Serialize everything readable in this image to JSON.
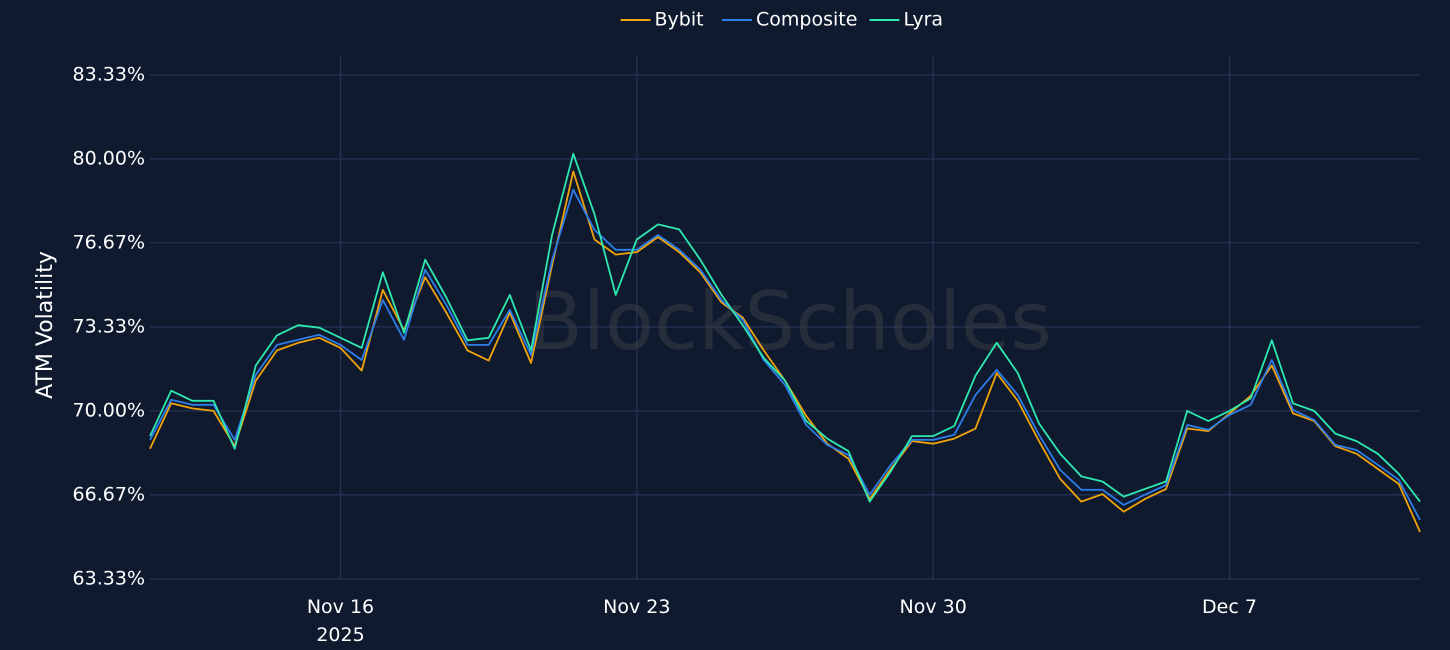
{
  "chart_data": {
    "type": "line",
    "y_axis_label": "ATM Volatility",
    "watermark": "BlockScholes",
    "legend_position": "top",
    "grid": true,
    "xlim": [
      "2025-11-11T12:00",
      "2025-12-11T12:00"
    ],
    "xticks": [
      {
        "value": "2025-11-16T00:00",
        "label": "Nov 16",
        "sublabel": "2025"
      },
      {
        "value": "2025-11-23T00:00",
        "label": "Nov 23"
      },
      {
        "value": "2025-11-30T00:00",
        "label": "Nov 30"
      },
      {
        "value": "2025-12-07T00:00",
        "label": "Dec 7"
      }
    ],
    "ylim": [
      63.33,
      84.12
    ],
    "yticks": [
      {
        "value": 63.33,
        "label": "63.33%"
      },
      {
        "value": 66.67,
        "label": "66.67%"
      },
      {
        "value": 70.0,
        "label": "70.00%"
      },
      {
        "value": 73.33,
        "label": "73.33%"
      },
      {
        "value": 76.67,
        "label": "76.67%"
      },
      {
        "value": 80.0,
        "label": "80.00%"
      },
      {
        "value": 83.33,
        "label": "83.33%"
      }
    ],
    "x": [
      "2025-11-11T12:00",
      "2025-11-12T00:00",
      "2025-11-12T12:00",
      "2025-11-13T00:00",
      "2025-11-13T12:00",
      "2025-11-14T00:00",
      "2025-11-14T12:00",
      "2025-11-15T00:00",
      "2025-11-15T12:00",
      "2025-11-16T00:00",
      "2025-11-16T12:00",
      "2025-11-17T00:00",
      "2025-11-17T12:00",
      "2025-11-18T00:00",
      "2025-11-18T12:00",
      "2025-11-19T00:00",
      "2025-11-19T12:00",
      "2025-11-20T00:00",
      "2025-11-20T12:00",
      "2025-11-21T00:00",
      "2025-11-21T12:00",
      "2025-11-22T00:00",
      "2025-11-22T12:00",
      "2025-11-23T00:00",
      "2025-11-23T12:00",
      "2025-11-24T00:00",
      "2025-11-24T12:00",
      "2025-11-25T00:00",
      "2025-11-25T12:00",
      "2025-11-26T00:00",
      "2025-11-26T12:00",
      "2025-11-27T00:00",
      "2025-11-27T12:00",
      "2025-11-28T00:00",
      "2025-11-28T12:00",
      "2025-11-29T00:00",
      "2025-11-29T12:00",
      "2025-11-30T00:00",
      "2025-11-30T12:00",
      "2025-12-01T00:00",
      "2025-12-01T12:00",
      "2025-12-02T00:00",
      "2025-12-02T12:00",
      "2025-12-03T00:00",
      "2025-12-03T12:00",
      "2025-12-04T00:00",
      "2025-12-04T12:00",
      "2025-12-05T00:00",
      "2025-12-05T12:00",
      "2025-12-06T00:00",
      "2025-12-06T12:00",
      "2025-12-07T00:00",
      "2025-12-07T12:00",
      "2025-12-08T00:00",
      "2025-12-08T12:00",
      "2025-12-09T00:00",
      "2025-12-09T12:00",
      "2025-12-10T00:00",
      "2025-12-10T12:00",
      "2025-12-11T00:00",
      "2025-12-11T12:00"
    ],
    "series": [
      {
        "name": "Bybit",
        "color": "#f0a30a",
        "values": [
          68.5,
          70.3,
          70.1,
          70.0,
          68.6,
          71.2,
          72.4,
          72.7,
          72.9,
          72.5,
          71.6,
          74.8,
          73.2,
          75.3,
          73.9,
          72.4,
          72.0,
          73.9,
          71.9,
          75.8,
          79.5,
          76.8,
          76.2,
          76.3,
          76.9,
          76.3,
          75.5,
          74.3,
          73.7,
          72.4,
          71.2,
          69.8,
          68.7,
          68.1,
          66.5,
          67.7,
          68.8,
          68.7,
          68.9,
          69.3,
          71.5,
          70.4,
          68.8,
          67.3,
          66.4,
          66.7,
          66.0,
          66.5,
          66.9,
          69.3,
          69.2,
          69.9,
          70.6,
          71.8,
          69.9,
          69.6,
          68.6,
          68.3,
          67.7,
          67.1,
          65.2
        ]
      },
      {
        "name": "Composite",
        "color": "#2e7de8",
        "values": [
          68.85,
          70.44,
          70.24,
          70.24,
          68.85,
          71.43,
          72.62,
          72.82,
          73.02,
          72.62,
          72.02,
          74.4,
          72.82,
          75.6,
          74.21,
          72.62,
          72.62,
          74.01,
          72.22,
          75.99,
          78.77,
          77.18,
          76.39,
          76.39,
          76.98,
          76.39,
          75.6,
          74.4,
          73.61,
          72.02,
          71.03,
          69.44,
          68.65,
          68.25,
          66.67,
          67.86,
          68.85,
          68.85,
          69.05,
          70.63,
          71.63,
          70.63,
          69.05,
          67.66,
          66.87,
          66.87,
          66.27,
          66.67,
          67.06,
          69.44,
          69.25,
          69.84,
          70.24,
          72.02,
          70.04,
          69.64,
          68.65,
          68.45,
          67.86,
          67.26,
          65.67
        ]
      },
      {
        "name": "Lyra",
        "color": "#2ee8b0",
        "values": [
          69.0,
          70.8,
          70.4,
          70.4,
          68.5,
          71.8,
          73.0,
          73.4,
          73.3,
          72.9,
          72.5,
          75.5,
          73.1,
          76.0,
          74.5,
          72.8,
          72.9,
          74.6,
          72.4,
          77.0,
          80.2,
          77.8,
          74.6,
          76.8,
          77.4,
          77.2,
          76.0,
          74.6,
          73.4,
          72.1,
          71.2,
          69.6,
          68.9,
          68.4,
          66.4,
          67.6,
          69.0,
          69.0,
          69.4,
          71.4,
          72.7,
          71.5,
          69.5,
          68.3,
          67.4,
          67.2,
          66.6,
          66.9,
          67.2,
          70.0,
          69.6,
          70.0,
          70.5,
          72.8,
          70.3,
          70.0,
          69.1,
          68.8,
          68.3,
          67.5,
          66.4
        ]
      }
    ]
  }
}
